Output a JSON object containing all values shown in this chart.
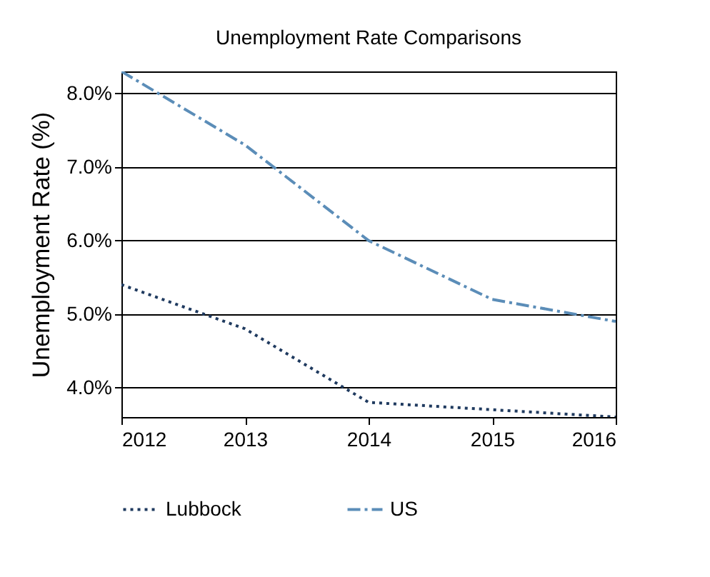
{
  "chart_data": {
    "type": "line",
    "title": "Unemployment Rate Comparisons",
    "ylabel": "Unemployment Rate (%)",
    "x": [
      2012,
      2013,
      2014,
      2015,
      2016
    ],
    "series": [
      {
        "name": "Lubbock",
        "color": "#1f3a5f",
        "line_style": "dotted",
        "values": [
          5.4,
          4.8,
          3.8,
          3.7,
          3.6
        ]
      },
      {
        "name": "US",
        "color": "#5b8db8",
        "line_style": "dashed",
        "values": [
          8.3,
          7.3,
          6.0,
          5.2,
          4.9
        ]
      }
    ],
    "xlim": [
      2012,
      2016
    ],
    "xticks": [
      2012,
      2013,
      2014,
      2015,
      2016
    ],
    "ylim": [
      3.6,
      8.3
    ],
    "yticks": [
      {
        "value": 4,
        "label": "4.0%"
      },
      {
        "value": 5,
        "label": "5.0%"
      },
      {
        "value": 6,
        "label": "6.0%"
      },
      {
        "value": 7,
        "label": "7.0%"
      },
      {
        "value": 8,
        "label": "8.0%"
      }
    ],
    "grid": "y",
    "legend": "bottom"
  }
}
